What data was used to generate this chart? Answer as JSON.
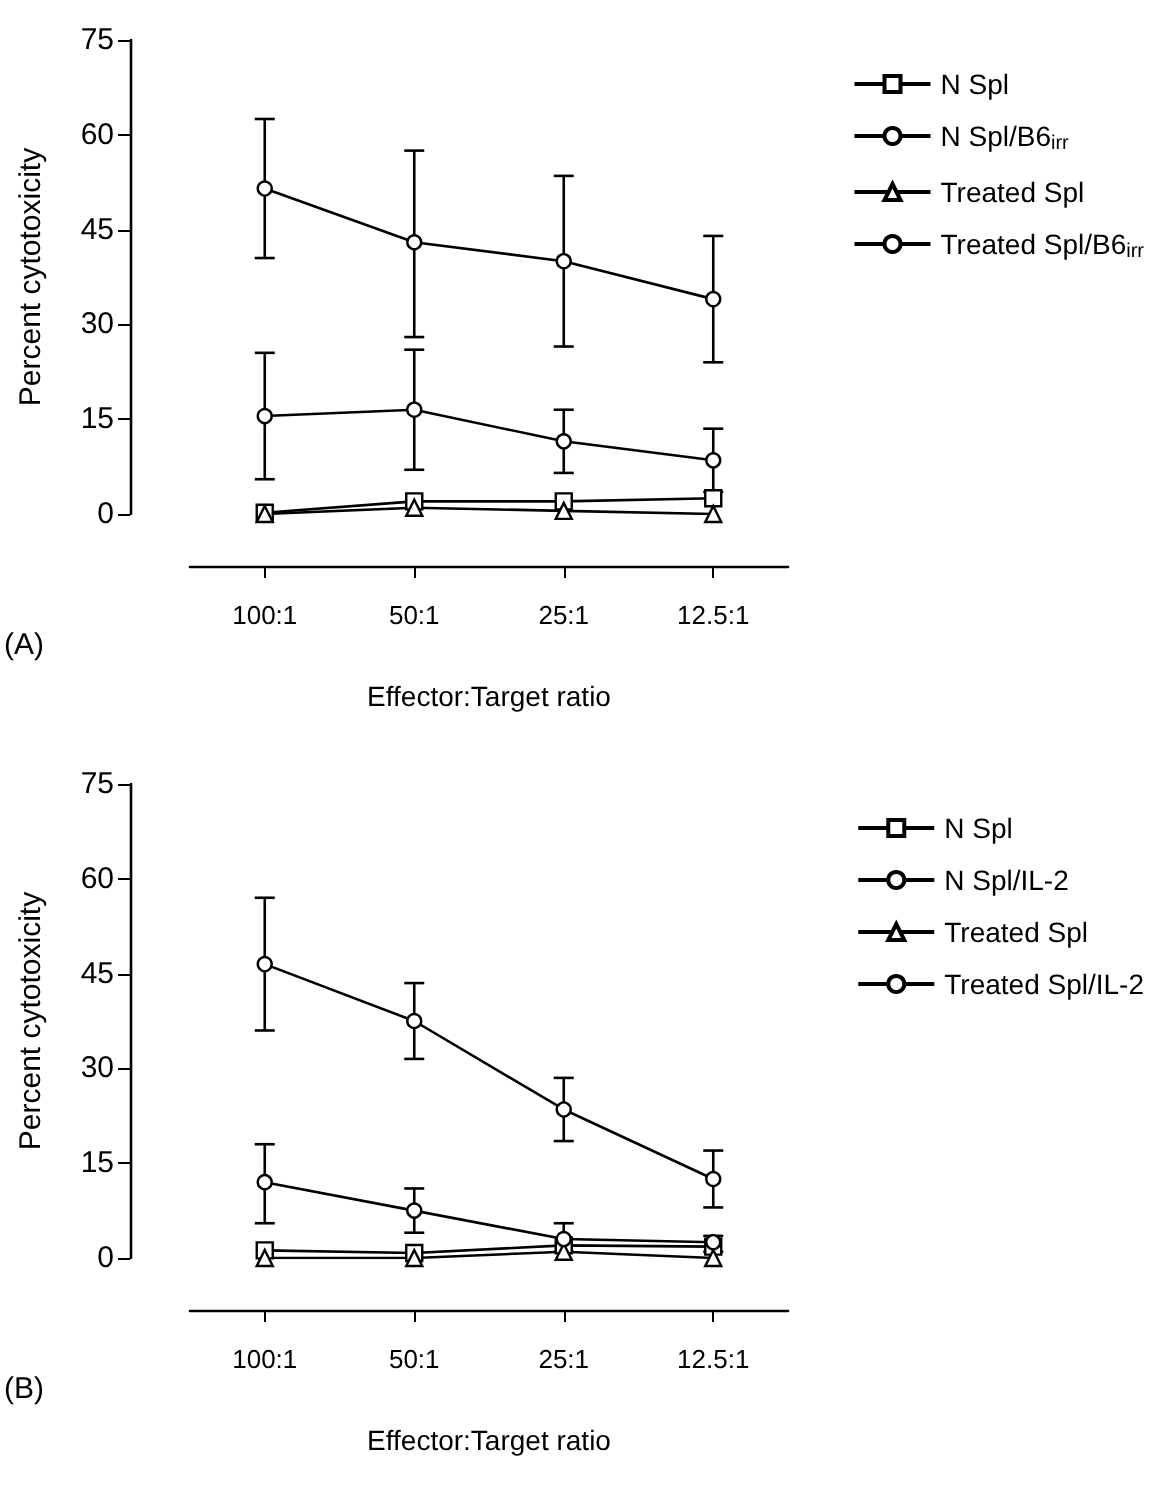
{
  "chart_data": [
    {
      "type": "line",
      "xlabel": "Effector:Target ratio",
      "ylabel": "Percent cytotoxicity",
      "annotations": [
        "(A)"
      ],
      "categories": [
        "100:1",
        "50:1",
        "25:1",
        "12.5:1"
      ],
      "ylim": [
        0,
        75
      ],
      "yticks": [
        0,
        15,
        30,
        45,
        60,
        75
      ],
      "legend": "top right",
      "grid": false,
      "line_style": "solid",
      "series": [
        {
          "name": "N Spl",
          "color": "#000000",
          "marker": "square",
          "values": [
            0.2,
            2,
            2,
            2.5
          ]
        },
        {
          "name": "N Spl/B6$_{irr}$",
          "color": "#000000",
          "marker": "circle",
          "values": [
            51.5,
            43,
            40,
            34
          ],
          "errors": [
            [
              40.5,
              62.5
            ],
            [
              28,
              57.5
            ],
            [
              26.5,
              53.5
            ],
            [
              24,
              44
            ]
          ]
        },
        {
          "name": "Treated Spl",
          "color": "#000000",
          "marker": "triangle",
          "values": [
            0,
            1,
            0.5,
            0
          ]
        },
        {
          "name": "Treated Spl/B6$_{irr}$",
          "color": "#000000",
          "marker": "circle",
          "values": [
            15.5,
            16.5,
            11.5,
            8.5
          ],
          "errors": [
            [
              5.5,
              25.5
            ],
            [
              7,
              26
            ],
            [
              6.5,
              16.5
            ],
            [
              3.5,
              13.5
            ]
          ]
        }
      ]
    },
    {
      "type": "line",
      "xlabel": "Effector:Target ratio",
      "ylabel": "Percent cytotoxicity",
      "annotations": [
        "(B)"
      ],
      "categories": [
        "100:1",
        "50:1",
        "25:1",
        "12.5:1"
      ],
      "ylim": [
        0,
        75
      ],
      "yticks": [
        0,
        15,
        30,
        45,
        60,
        75
      ],
      "legend": "top right",
      "grid": false,
      "line_style": "solid",
      "series": [
        {
          "name": "N Spl",
          "color": "#000000",
          "marker": "square",
          "values": [
            1.2,
            0.8,
            2,
            1.8
          ]
        },
        {
          "name": "N Spl/IL-2",
          "color": "#000000",
          "marker": "circle",
          "values": [
            46.5,
            37.5,
            23.5,
            12.5
          ],
          "errors": [
            [
              36,
              57
            ],
            [
              31.5,
              43.5
            ],
            [
              18.5,
              28.5
            ],
            [
              8,
              17
            ]
          ]
        },
        {
          "name": "Treated Spl",
          "color": "#000000",
          "marker": "triangle",
          "values": [
            0,
            0,
            1,
            0
          ]
        },
        {
          "name": "Treated Spl/IL-2",
          "color": "#000000",
          "marker": "circle",
          "values": [
            12,
            7.5,
            3,
            2.5
          ],
          "errors": [
            [
              5.5,
              18
            ],
            [
              4,
              11
            ],
            [
              1,
              5.5
            ],
            [
              1,
              3.5
            ]
          ]
        }
      ]
    }
  ]
}
